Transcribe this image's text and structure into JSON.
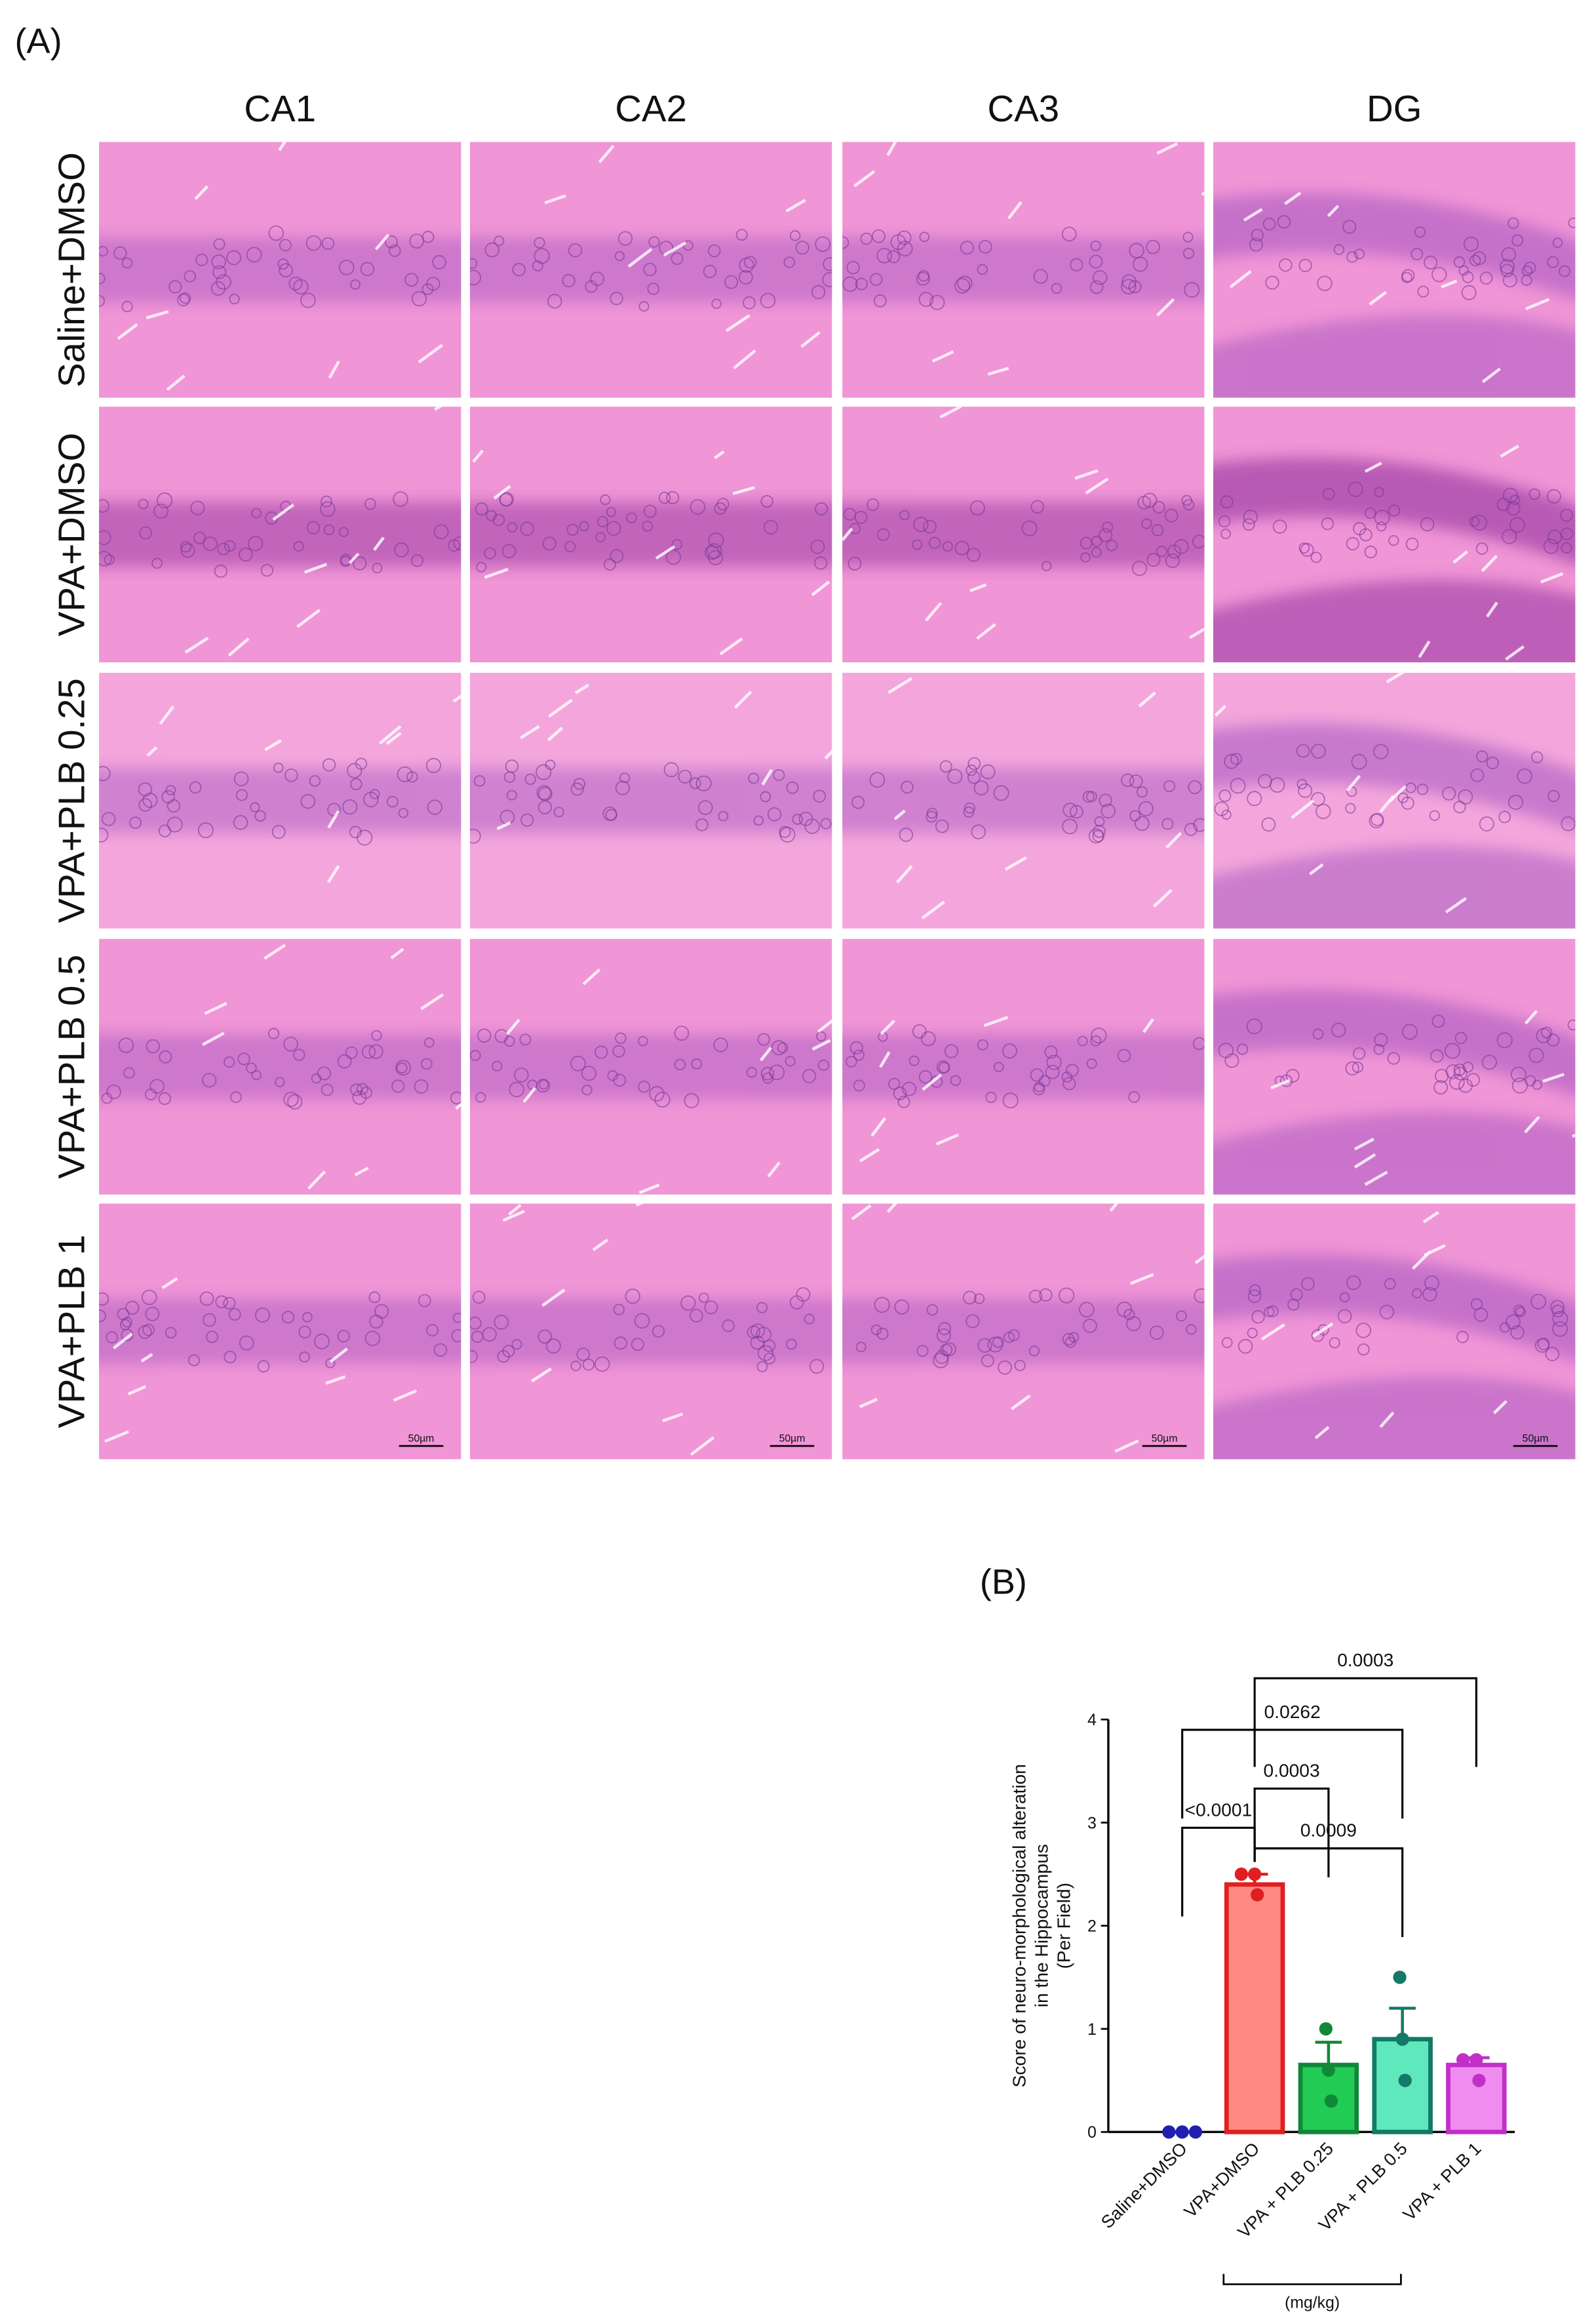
{
  "figure": {
    "panel_label": "(A)",
    "columns": [
      "CA1",
      "CA2",
      "CA3",
      "DG"
    ],
    "rows": [
      "Saline+DMSO",
      "VPA+DMSO",
      "VPA+PLB 0.25",
      "VPA+PLB 0.5",
      "VPA+PLB 1"
    ],
    "scale_bar": "50µm"
  },
  "chart_data": {
    "type": "bar",
    "panel_label": "(B)",
    "ylabel": [
      "Score of neuro-morphological alteration",
      "in the Hippocampus",
      "(Per Field)"
    ],
    "categories": [
      "Saline+DMSO",
      "VPA+DMSO",
      "VPA + PLB 0.25",
      "VPA + PLB 0.5",
      "VPA + PLB 1"
    ],
    "values": [
      0,
      2.4,
      0.65,
      0.9,
      0.65
    ],
    "errors": [
      0,
      0.1,
      0.22,
      0.3,
      0.07
    ],
    "points": [
      [
        0,
        0,
        0
      ],
      [
        2.5,
        2.5,
        2.3
      ],
      [
        1,
        0.6,
        0.3
      ],
      [
        1.5,
        0.9,
        0.5
      ],
      [
        0.7,
        0.7,
        0.5
      ]
    ],
    "colors": [
      "#3030d0",
      "#ff8a84",
      "#22cc55",
      "#5ee8bc",
      "#f08cf0"
    ],
    "edge_colors": [
      "#2020b0",
      "#e02020",
      "#118838",
      "#127a66",
      "#c030c8"
    ],
    "ylim": [
      0,
      4
    ],
    "yticks": [
      0,
      1,
      2,
      3,
      4
    ],
    "comparisons": [
      {
        "groups": [
          0,
          1
        ],
        "label": "<0.0001"
      },
      {
        "groups": [
          1,
          2
        ],
        "label": "0.0003"
      },
      {
        "groups": [
          1,
          3
        ],
        "label": "0.0009"
      },
      {
        "groups": [
          0,
          3
        ],
        "label": "0.0262"
      },
      {
        "groups": [
          1,
          4
        ],
        "label": "0.0003"
      }
    ],
    "group_label": "(mg/kg)"
  }
}
